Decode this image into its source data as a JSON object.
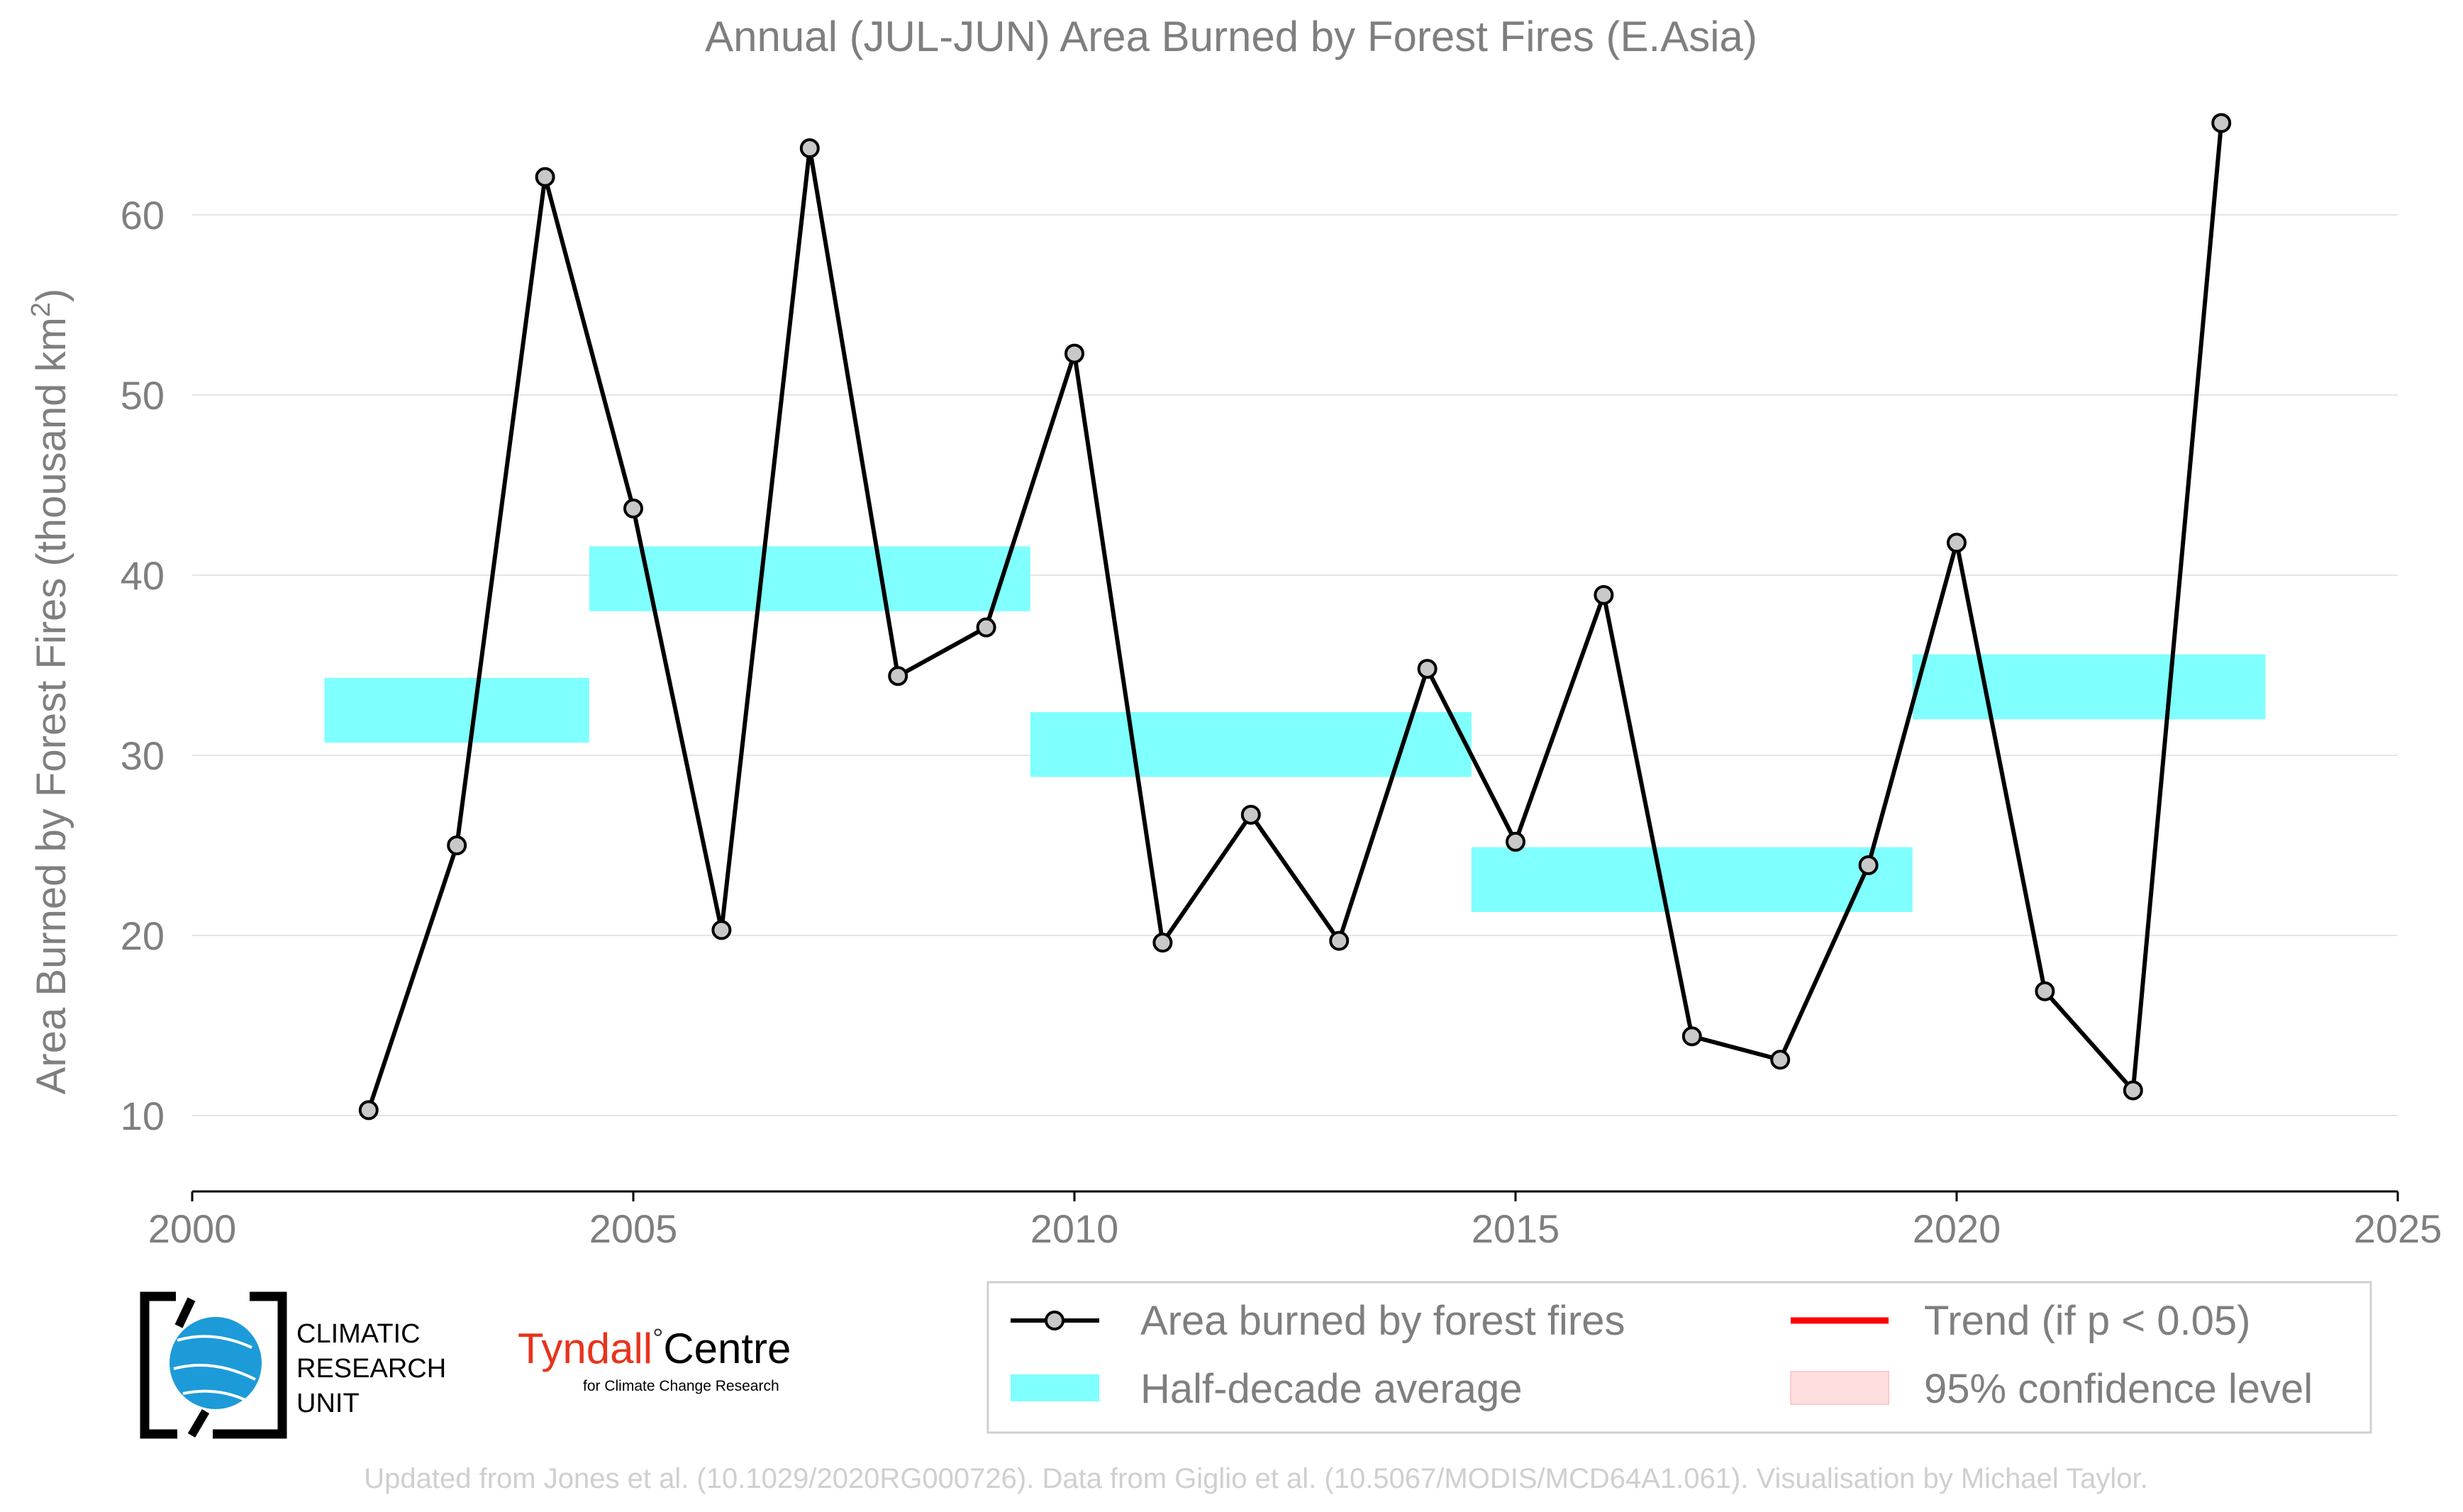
{
  "chart_data": {
    "type": "line",
    "title": "Annual (JUL-JUN) Area Burned by Forest Fires (E.Asia)",
    "ylabel": "Area Burned by Forest Fires (thousand km",
    "ylabel_sup": "2",
    "ylabel_close": ")",
    "xlim": [
      2000,
      2025
    ],
    "ylim": [
      6,
      67
    ],
    "xticks": [
      2000,
      2005,
      2010,
      2015,
      2020,
      2025
    ],
    "yticks": [
      10,
      20,
      30,
      40,
      50,
      60
    ],
    "grid": "horizontal",
    "colors": {
      "line": "#000000",
      "marker_fill": "#c8c8c8",
      "half_decade": "#80ffff",
      "trend": "#ff0000",
      "confidence": "#ffdede",
      "grid": "#e6e6e6",
      "text": "#7f7f7f"
    },
    "series": [
      {
        "name": "Area burned by forest fires",
        "x": [
          2002,
          2003,
          2004,
          2005,
          2006,
          2007,
          2008,
          2009,
          2010,
          2011,
          2012,
          2013,
          2014,
          2015,
          2016,
          2017,
          2018,
          2019,
          2020,
          2021,
          2022,
          2023
        ],
        "y": [
          10.3,
          25.0,
          62.1,
          43.7,
          20.3,
          63.7,
          34.4,
          37.1,
          52.3,
          19.6,
          26.7,
          19.7,
          34.8,
          25.2,
          38.9,
          14.4,
          13.1,
          23.9,
          41.8,
          16.9,
          11.4,
          65.1
        ]
      }
    ],
    "half_decade_average": [
      {
        "x_start": 2001.5,
        "x_end": 2004.5,
        "value": 32.5
      },
      {
        "x_start": 2004.5,
        "x_end": 2009.5,
        "value": 39.8
      },
      {
        "x_start": 2009.5,
        "x_end": 2014.5,
        "value": 30.6
      },
      {
        "x_start": 2014.5,
        "x_end": 2019.5,
        "value": 23.1
      },
      {
        "x_start": 2019.5,
        "x_end": 2023.5,
        "value": 33.8
      }
    ],
    "legend": {
      "placement": "bottom-right",
      "entries": [
        "Area burned by forest fires",
        "Trend (if p < 0.05)",
        "Half-decade average",
        "95% confidence level"
      ]
    }
  },
  "logos": {
    "cru": [
      "CLIMATIC",
      "RESEARCH",
      "UNIT"
    ],
    "tyndall_main": "Tyndall",
    "tyndall_degree": "°",
    "tyndall_centre": "Centre",
    "tyndall_sub": "for Climate Change Research"
  },
  "footer": "Updated from Jones et al. (10.1029/2020RG000726). Data from Giglio et al. (10.5067/MODIS/MCD64A1.061). Visualisation by Michael Taylor."
}
